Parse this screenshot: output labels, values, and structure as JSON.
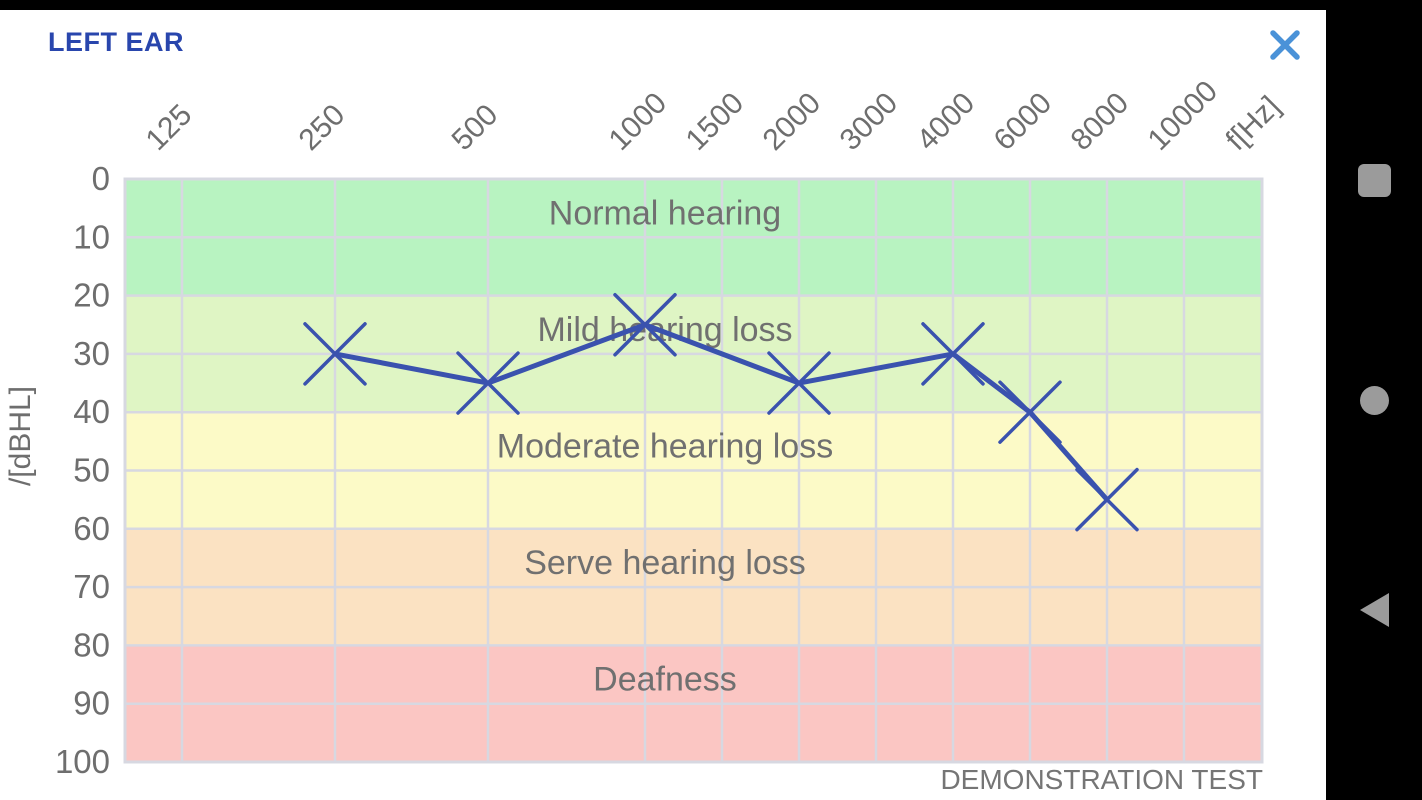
{
  "header": {
    "title": "LEFT EAR",
    "title_color": "#2946ad",
    "close_icon": "close-x",
    "close_icon_color": "#4a92d8"
  },
  "nav_bar": {
    "background": "#000000",
    "icon_color": "#9b9b9b",
    "buttons": [
      {
        "label": "recents",
        "icon": "square-icon"
      },
      {
        "label": "home",
        "icon": "circle-icon"
      },
      {
        "label": "back",
        "icon": "triangle-left-icon"
      }
    ]
  },
  "chart_data": {
    "type": "line",
    "title": "",
    "x_categories": [
      "125",
      "250",
      "500",
      "1000",
      "1500",
      "2000",
      "3000",
      "4000",
      "6000",
      "8000",
      "10000"
    ],
    "x_unit_label": "f[Hz]",
    "x_tick_rotation": -45,
    "ylabel": "/[dBHL]",
    "y_ticks": [
      "0",
      "10",
      "20",
      "30",
      "40",
      "50",
      "60",
      "70",
      "80",
      "90",
      "100"
    ],
    "ylim": [
      0,
      100
    ],
    "y_inverted": true,
    "grid": true,
    "gridline_color": "#d7d8e1",
    "tick_label_color": "#6e6e6e",
    "band_label_color": "#707070",
    "series": [
      {
        "name": "left ear thresholds",
        "color": "#3a52ae",
        "marker": "x",
        "points": [
          {
            "freq": "250",
            "db": 30
          },
          {
            "freq": "500",
            "db": 35
          },
          {
            "freq": "1000",
            "db": 25
          },
          {
            "freq": "2000",
            "db": 35
          },
          {
            "freq": "4000",
            "db": 30
          },
          {
            "freq": "6000",
            "db": 40
          },
          {
            "freq": "8000",
            "db": 55
          }
        ]
      }
    ],
    "bands": [
      {
        "label": "Normal hearing",
        "from": 0,
        "to": 20,
        "color": "#b8f3c1"
      },
      {
        "label": "Mild hearing loss",
        "from": 20,
        "to": 40,
        "color": "#dff5c4"
      },
      {
        "label": "Moderate hearing loss",
        "from": 40,
        "to": 60,
        "color": "#fcfac7"
      },
      {
        "label": "Serve hearing loss",
        "from": 60,
        "to": 80,
        "color": "#fbe2c2"
      },
      {
        "label": "Deafness",
        "from": 80,
        "to": 100,
        "color": "#fbc6c3"
      }
    ],
    "footer": "DEMONSTRATION TEST",
    "footer_color": "#757575"
  }
}
